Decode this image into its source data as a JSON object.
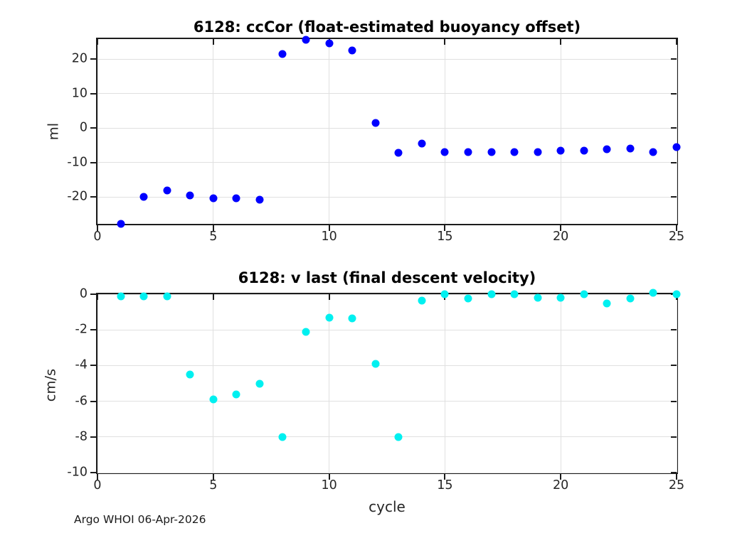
{
  "footer": "Argo WHOI 06-Apr-2026",
  "chart_data": [
    {
      "type": "scatter",
      "title": "6128: ccCor (float-estimated buoyancy offset)",
      "ylabel": "ml",
      "xlabel": "",
      "marker_color": "#0000ff",
      "marker_size": 11,
      "grid": true,
      "legend": "none",
      "xlim": [
        0,
        25
      ],
      "ylim": [
        -27.8,
        25.8
      ],
      "xticks": [
        0,
        5,
        10,
        15,
        20,
        25
      ],
      "yticks": [
        20,
        10,
        0,
        -10,
        -20
      ],
      "x": [
        1,
        2,
        3,
        4,
        5,
        6,
        7,
        8,
        9,
        10,
        11,
        12,
        13,
        14,
        15,
        16,
        17,
        18,
        19,
        20,
        21,
        22,
        23,
        24,
        25
      ],
      "y": [
        -27.7,
        -19.9,
        -18.2,
        -19.6,
        -20.3,
        -20.3,
        -20.8,
        21.4,
        25.5,
        24.5,
        22.6,
        1.4,
        -7.1,
        -4.6,
        -7.0,
        -6.9,
        -7.0,
        -6.9,
        -6.9,
        -6.5,
        -6.6,
        -6.1,
        -6.0,
        -7.0,
        -5.5
      ]
    },
    {
      "type": "scatter",
      "title": "6128: v last (final descent velocity)",
      "ylabel": "cm/s",
      "xlabel": "cycle",
      "marker_color": "#00f0f0",
      "marker_size": 11,
      "grid": true,
      "legend": "none",
      "xlim": [
        0,
        25
      ],
      "ylim": [
        -10,
        0
      ],
      "xticks": [
        0,
        5,
        10,
        15,
        20,
        25
      ],
      "yticks": [
        0,
        -2,
        -4,
        -6,
        -8,
        -10
      ],
      "x": [
        1,
        2,
        3,
        4,
        5,
        6,
        7,
        8,
        9,
        10,
        11,
        12,
        13,
        14,
        15,
        16,
        17,
        18,
        19,
        20,
        21,
        22,
        23,
        24,
        25
      ],
      "y": [
        -0.1,
        -0.1,
        -0.1,
        -4.5,
        -5.9,
        -5.6,
        -5.0,
        -8.0,
        -2.1,
        -1.3,
        -1.35,
        -3.9,
        -8.0,
        -0.35,
        0.0,
        -0.25,
        0.0,
        0.0,
        -0.2,
        -0.2,
        0.0,
        -0.5,
        -0.25,
        0.1,
        0.0
      ]
    }
  ]
}
